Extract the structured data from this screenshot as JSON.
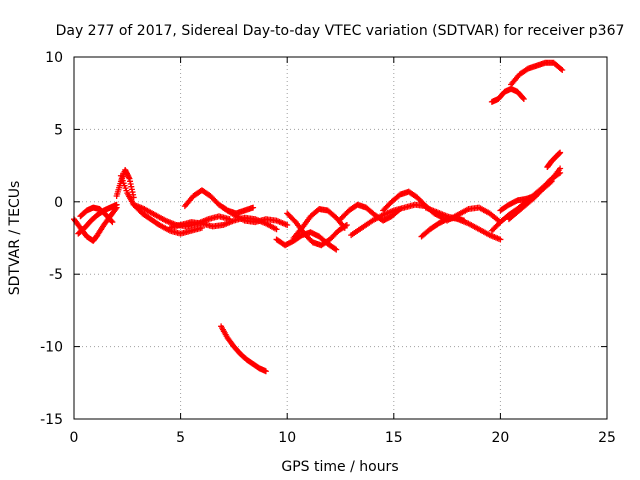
{
  "chart_data": {
    "type": "scatter",
    "title": "Day 277 of 2017, Sidereal Day-to-day VTEC variation (SDTVAR) for receiver p367",
    "xlabel": "GPS time / hours",
    "ylabel": "SDTVAR / TECUs",
    "xlim": [
      0,
      25
    ],
    "ylim": [
      -15,
      10
    ],
    "xticks": [
      0,
      5,
      10,
      15,
      20,
      25
    ],
    "xtick_labels": [
      "0",
      "5",
      "10",
      "15",
      "20",
      "25"
    ],
    "yticks": [
      -15,
      -10,
      -5,
      0,
      5,
      10
    ],
    "ytick_labels": [
      "-15",
      "-10",
      "-5",
      "0",
      "5",
      "10"
    ],
    "grid": true,
    "marker": "+",
    "color": "#ff0000",
    "series": [
      {
        "name": "trace-1",
        "x": [
          0.0,
          0.3,
          0.6,
          0.9,
          1.1,
          1.4,
          1.7,
          2.0
        ],
        "y": [
          -1.2,
          -1.8,
          -2.4,
          -2.7,
          -2.3,
          -1.6,
          -1.0,
          -0.4
        ]
      },
      {
        "name": "trace-2",
        "x": [
          0.3,
          0.6,
          0.9,
          1.2,
          1.5,
          1.8
        ],
        "y": [
          -1.0,
          -0.6,
          -0.4,
          -0.5,
          -0.9,
          -1.4
        ]
      },
      {
        "name": "trace-3",
        "x": [
          0.2,
          0.5,
          0.8,
          1.1,
          1.4,
          1.7,
          2.0
        ],
        "y": [
          -2.2,
          -1.8,
          -1.3,
          -0.9,
          -0.6,
          -0.4,
          -0.2
        ]
      },
      {
        "name": "trace-4",
        "x": [
          2.0,
          2.2,
          2.4,
          2.6,
          2.8
        ],
        "y": [
          0.4,
          1.4,
          2.2,
          1.6,
          0.3
        ]
      },
      {
        "name": "trace-5",
        "x": [
          2.2,
          2.5,
          2.8,
          3.2,
          3.6,
          4.0,
          4.5,
          5.0,
          5.5,
          6.0
        ],
        "y": [
          1.8,
          0.6,
          -0.2,
          -0.8,
          -1.2,
          -1.6,
          -2.0,
          -2.2,
          -2.0,
          -1.8
        ]
      },
      {
        "name": "trace-6",
        "x": [
          2.8,
          3.3,
          3.8,
          4.3,
          4.8,
          5.3,
          5.8,
          6.3,
          6.8,
          7.3
        ],
        "y": [
          -0.2,
          -0.5,
          -0.9,
          -1.3,
          -1.6,
          -1.7,
          -1.5,
          -1.2,
          -1.0,
          -1.2
        ]
      },
      {
        "name": "trace-7",
        "x": [
          5.2,
          5.6,
          6.0,
          6.4,
          6.8,
          7.2,
          7.6,
          8.0,
          8.4
        ],
        "y": [
          -0.3,
          0.4,
          0.8,
          0.4,
          -0.2,
          -0.6,
          -0.8,
          -0.6,
          -0.4
        ]
      },
      {
        "name": "trace-8",
        "x": [
          4.5,
          5.0,
          5.5,
          6.0,
          6.5,
          7.0,
          7.5,
          8.0,
          8.5,
          9.0,
          9.5
        ],
        "y": [
          -1.8,
          -1.6,
          -1.4,
          -1.5,
          -1.7,
          -1.6,
          -1.3,
          -1.1,
          -1.2,
          -1.5,
          -1.9
        ]
      },
      {
        "name": "trace-9",
        "x": [
          6.9,
          7.2,
          7.5,
          7.8,
          8.1,
          8.4,
          8.7,
          9.0
        ],
        "y": [
          -8.6,
          -9.4,
          -10.0,
          -10.5,
          -10.9,
          -11.2,
          -11.5,
          -11.7
        ]
      },
      {
        "name": "trace-10",
        "x": [
          7.0,
          7.5,
          8.0,
          8.5,
          9.0,
          9.5,
          10.0
        ],
        "y": [
          -0.4,
          -0.9,
          -1.3,
          -1.4,
          -1.2,
          -1.3,
          -1.6
        ]
      },
      {
        "name": "trace-11",
        "x": [
          9.5,
          9.9,
          10.3,
          10.7,
          11.1,
          11.5,
          11.9,
          12.3
        ],
        "y": [
          -2.6,
          -3.0,
          -2.7,
          -2.3,
          -2.1,
          -2.4,
          -2.9,
          -3.3
        ]
      },
      {
        "name": "trace-12",
        "x": [
          10.0,
          10.4,
          10.8,
          11.2,
          11.6,
          12.0,
          12.4,
          12.8
        ],
        "y": [
          -0.8,
          -1.4,
          -2.2,
          -2.8,
          -3.0,
          -2.6,
          -2.0,
          -1.6
        ]
      },
      {
        "name": "trace-13",
        "x": [
          10.3,
          10.7,
          11.1,
          11.5,
          11.9,
          12.3,
          12.7
        ],
        "y": [
          -2.5,
          -1.8,
          -1.0,
          -0.5,
          -0.6,
          -1.1,
          -1.8
        ]
      },
      {
        "name": "trace-14",
        "x": [
          12.5,
          12.9,
          13.3,
          13.7,
          14.1,
          14.5,
          14.9,
          15.3
        ],
        "y": [
          -1.2,
          -0.6,
          -0.2,
          -0.4,
          -0.9,
          -1.3,
          -1.0,
          -0.5
        ]
      },
      {
        "name": "trace-15",
        "x": [
          13.0,
          13.5,
          14.0,
          14.5,
          15.0,
          15.5,
          16.0,
          16.5
        ],
        "y": [
          -2.3,
          -1.8,
          -1.3,
          -0.9,
          -0.6,
          -0.4,
          -0.2,
          -0.3
        ]
      },
      {
        "name": "trace-16",
        "x": [
          14.5,
          14.9,
          15.3,
          15.7,
          16.1,
          16.5,
          16.9,
          17.3
        ],
        "y": [
          -0.6,
          0.0,
          0.5,
          0.7,
          0.3,
          -0.3,
          -0.8,
          -1.1
        ]
      },
      {
        "name": "trace-17",
        "x": [
          16.5,
          17.0,
          17.5,
          18.0,
          18.5,
          19.0,
          19.5,
          20.0
        ],
        "y": [
          -0.4,
          -0.7,
          -1.0,
          -1.2,
          -1.5,
          -1.9,
          -2.3,
          -2.6
        ]
      },
      {
        "name": "trace-18",
        "x": [
          16.3,
          16.7,
          17.1,
          17.5,
          17.9,
          18.3
        ],
        "y": [
          -2.4,
          -1.9,
          -1.5,
          -1.2,
          -1.1,
          -1.3
        ]
      },
      {
        "name": "trace-19",
        "x": [
          17.5,
          18.0,
          18.5,
          19.0,
          19.5,
          20.0
        ],
        "y": [
          -1.3,
          -0.9,
          -0.5,
          -0.4,
          -0.8,
          -1.4
        ]
      },
      {
        "name": "trace-20",
        "x": [
          19.6,
          20.0,
          20.4,
          20.8,
          21.2,
          21.6,
          22.0,
          22.4,
          22.8
        ],
        "y": [
          -2.0,
          -1.4,
          -0.9,
          -0.5,
          0.0,
          0.5,
          1.0,
          1.6,
          2.0
        ]
      },
      {
        "name": "trace-21",
        "x": [
          20.0,
          20.4,
          20.8,
          21.2,
          21.6,
          22.0,
          22.4,
          22.8
        ],
        "y": [
          -0.6,
          -0.2,
          0.1,
          0.2,
          0.4,
          0.9,
          1.5,
          2.3
        ]
      },
      {
        "name": "trace-22",
        "x": [
          20.4,
          20.8,
          21.2,
          21.6,
          22.0,
          22.4
        ],
        "y": [
          -1.2,
          -0.7,
          -0.2,
          0.3,
          0.9,
          1.4
        ]
      },
      {
        "name": "trace-23",
        "x": [
          22.2,
          22.4,
          22.6,
          22.8
        ],
        "y": [
          2.4,
          2.8,
          3.1,
          3.4
        ]
      },
      {
        "name": "trace-24",
        "x": [
          19.6,
          19.9,
          20.2,
          20.5,
          20.8,
          21.1
        ],
        "y": [
          6.9,
          7.1,
          7.6,
          7.8,
          7.6,
          7.1
        ]
      },
      {
        "name": "trace-25",
        "x": [
          20.5,
          20.9,
          21.3,
          21.7,
          22.1,
          22.5,
          22.9
        ],
        "y": [
          8.1,
          8.8,
          9.2,
          9.4,
          9.6,
          9.6,
          9.1
        ]
      }
    ]
  }
}
